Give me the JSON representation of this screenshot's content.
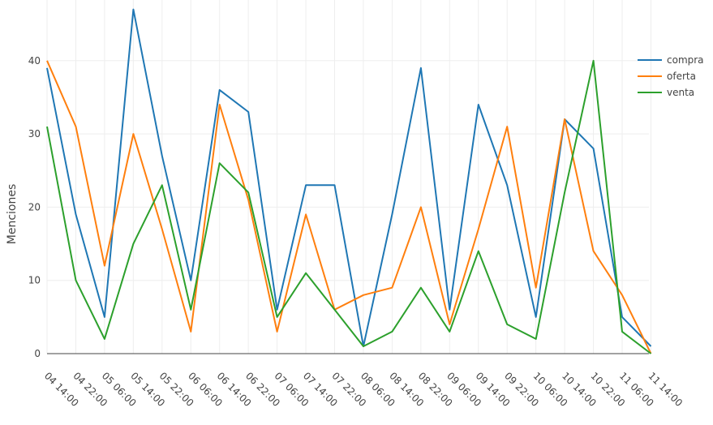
{
  "chart_data": {
    "type": "line",
    "title": "",
    "xlabel": "",
    "ylabel": "Menciones",
    "ylim": [
      0,
      48
    ],
    "yticks": [
      0,
      10,
      20,
      30,
      40
    ],
    "grid": true,
    "legend_position": "top-right",
    "categories": [
      "04 14:00",
      "04 22:00",
      "05 06:00",
      "05 14:00",
      "05 22:00",
      "06 06:00",
      "06 14:00",
      "06 22:00",
      "07 06:00",
      "07 14:00",
      "07 22:00",
      "08 06:00",
      "08 14:00",
      "08 22:00",
      "09 06:00",
      "09 14:00",
      "09 22:00",
      "10 06:00",
      "10 14:00",
      "10 22:00",
      "11 06:00",
      "11 14:00"
    ],
    "series": [
      {
        "name": "compra",
        "color": "#1f77b4",
        "values": [
          39,
          19,
          5,
          47,
          27,
          10,
          36,
          33,
          6,
          23,
          23,
          1,
          19,
          39,
          6,
          34,
          23,
          5,
          32,
          28,
          5,
          1
        ]
      },
      {
        "name": "oferta",
        "color": "#ff7f0e",
        "values": [
          40,
          31,
          12,
          30,
          17,
          3,
          34,
          21,
          3,
          19,
          6,
          8,
          9,
          20,
          4,
          17,
          31,
          9,
          32,
          14,
          8,
          0
        ]
      },
      {
        "name": "venta",
        "color": "#2ca02c",
        "values": [
          31,
          10,
          2,
          15,
          23,
          6,
          26,
          22,
          5,
          11,
          6,
          1,
          3,
          9,
          3,
          14,
          4,
          2,
          22,
          40,
          3,
          0
        ]
      }
    ]
  }
}
